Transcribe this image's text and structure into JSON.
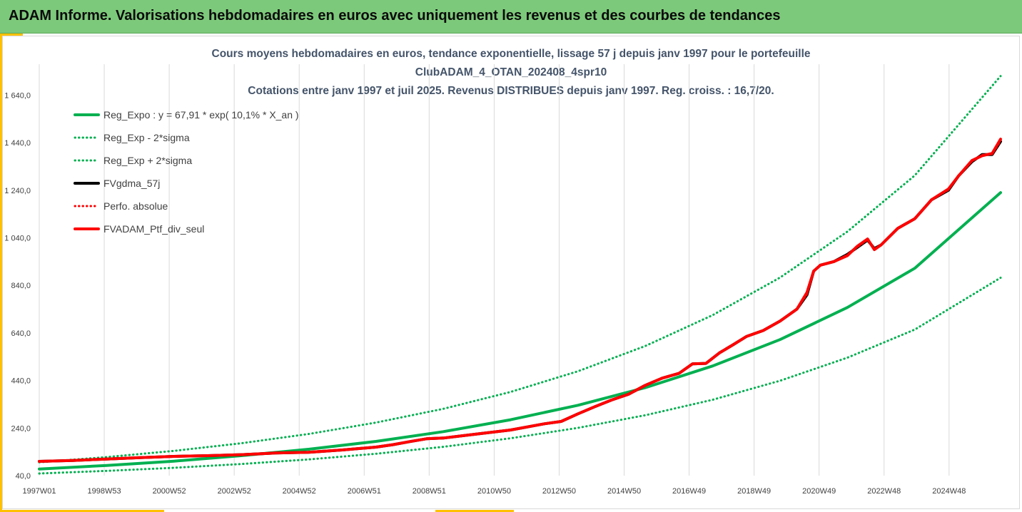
{
  "header": {
    "title": "ADAM Informe. Valorisations hebdomadaires en euros avec uniquement les revenus et des courbes de tendances"
  },
  "colors": {
    "banner_bg": "#7dc97b",
    "accent": "#ffc000",
    "trend": "#00b050",
    "band": "#00b050",
    "fv57": "#000000",
    "perfo": "#ff0000",
    "fvadam": "#ff0000"
  },
  "chart_data": {
    "type": "line",
    "title_lines": [
      "Cours moyens hebdomadaires  en euros, tendance exponentielle, lissage 57 j depuis janv 1997 pour le portefeuille",
      "ClubADAM_4_OTAN_202408_4spr10",
      "Cotations  entre janv 1997 et juil 2025. Revenus DISTRIBUES depuis janv 1997. Reg. croiss. : 16,7/20."
    ],
    "xlabel": "",
    "ylabel": "",
    "ylim": [
      40,
      1740
    ],
    "y_ticks": [
      "40,0",
      "240,0",
      "440,0",
      "640,0",
      "840,0",
      "1 040,0",
      "1 240,0",
      "1 440,0",
      "1 640,0"
    ],
    "x_range": [
      1997.0,
      2025.55
    ],
    "x_ticks": [
      "1997W01",
      "1998W53",
      "2000W52",
      "2002W52",
      "2004W52",
      "2006W51",
      "2008W51",
      "2010W50",
      "2012W50",
      "2014W50",
      "2016W49",
      "2018W49",
      "2020W49",
      "2022W48",
      "2024W48"
    ],
    "grid": "vertical",
    "legend_position": "top-left",
    "series": [
      {
        "name": "Reg_Expo : y = 67,91 * exp( 10,1% *  X_an )",
        "color": "#00b050",
        "style": "solid",
        "width": 4,
        "x": [
          1997.0,
          1999.0,
          2001.0,
          2003.0,
          2005.0,
          2007.0,
          2009.0,
          2011.0,
          2013.0,
          2015.0,
          2017.0,
          2019.0,
          2021.0,
          2023.0,
          2025.55
        ],
        "values": [
          68,
          83,
          101,
          124,
          151,
          184,
          225,
          275,
          336,
          410,
          501,
          612,
          747,
          912,
          1230
        ]
      },
      {
        "name": "Reg_Exp - 2*sigma",
        "color": "#00b050",
        "style": "dotted",
        "width": 3,
        "x": [
          1997.0,
          1999.0,
          2001.0,
          2003.0,
          2005.0,
          2007.0,
          2009.0,
          2011.0,
          2013.0,
          2015.0,
          2017.0,
          2019.0,
          2021.0,
          2023.0,
          2025.55
        ],
        "values": [
          49,
          60,
          73,
          89,
          108,
          132,
          161,
          197,
          241,
          294,
          359,
          439,
          536,
          654,
          872
        ]
      },
      {
        "name": "Reg_Exp + 2*sigma",
        "color": "#00b050",
        "style": "dotted",
        "width": 3,
        "x": [
          1997.0,
          1999.0,
          2001.0,
          2003.0,
          2005.0,
          2007.0,
          2009.0,
          2011.0,
          2013.0,
          2015.0,
          2017.0,
          2019.0,
          2021.0,
          2023.0,
          2025.55
        ],
        "values": [
          96,
          118,
          144,
          176,
          215,
          263,
          321,
          392,
          479,
          585,
          715,
          873,
          1066,
          1302,
          1720
        ]
      },
      {
        "name": "FVgdma_57j",
        "color": "#000000",
        "style": "solid",
        "width": 4,
        "x": [
          1997.0,
          1998.0,
          1999.0,
          2000.0,
          2001.0,
          2002.0,
          2003.0,
          2004.0,
          2005.0,
          2006.0,
          2007.0,
          2007.5,
          2008.0,
          2008.5,
          2009.0,
          2010.0,
          2011.0,
          2012.0,
          2012.5,
          2013.0,
          2013.5,
          2014.0,
          2014.5,
          2015.0,
          2015.5,
          2016.0,
          2016.4,
          2016.8,
          2017.2,
          2017.6,
          2018.0,
          2018.5,
          2019.0,
          2019.5,
          2019.8,
          2020.0,
          2020.2,
          2020.6,
          2021.0,
          2021.3,
          2021.6,
          2021.8,
          2022.0,
          2022.5,
          2023.0,
          2023.5,
          2024.0,
          2024.3,
          2024.7,
          2025.0,
          2025.3,
          2025.55
        ],
        "values": [
          100,
          104,
          110,
          116,
          121,
          124,
          128,
          135,
          138,
          148,
          160,
          170,
          183,
          195,
          198,
          215,
          232,
          258,
          268,
          300,
          330,
          358,
          382,
          420,
          450,
          470,
          510,
          512,
          556,
          590,
          625,
          650,
          690,
          740,
          800,
          900,
          925,
          940,
          970,
          1000,
          1030,
          995,
          1010,
          1080,
          1120,
          1200,
          1240,
          1300,
          1360,
          1390,
          1390,
          1445
        ]
      },
      {
        "name": "Perfo. absolue",
        "color": "#ff0000",
        "style": "dotted",
        "width": 3,
        "x": [
          1997.0,
          1998.0,
          1999.0,
          2000.0,
          2001.0,
          2002.0,
          2003.0,
          2004.0,
          2005.0,
          2006.0,
          2007.0,
          2007.5,
          2008.0,
          2008.5,
          2009.0,
          2010.0,
          2011.0,
          2012.0,
          2012.5,
          2013.0,
          2013.5,
          2014.0,
          2014.5,
          2015.0,
          2015.5,
          2016.0,
          2016.4,
          2016.8,
          2017.2,
          2017.6,
          2018.0,
          2018.5,
          2019.0,
          2019.5,
          2019.8,
          2020.0,
          2020.2,
          2020.6,
          2021.0,
          2021.3,
          2021.6,
          2021.8,
          2022.0,
          2022.5,
          2023.0,
          2023.5,
          2024.0,
          2024.3,
          2024.7,
          2025.0,
          2025.3,
          2025.55
        ],
        "values": [
          100,
          104,
          110,
          116,
          121,
          124,
          128,
          135,
          138,
          148,
          160,
          170,
          183,
          195,
          198,
          215,
          232,
          258,
          268,
          300,
          330,
          358,
          382,
          420,
          450,
          470,
          510,
          512,
          556,
          590,
          625,
          650,
          690,
          740,
          800,
          900,
          925,
          940,
          970,
          1000,
          1030,
          995,
          1010,
          1080,
          1120,
          1200,
          1240,
          1300,
          1360,
          1390,
          1390,
          1445
        ]
      },
      {
        "name": "FVADAM_Ptf_div_seul",
        "color": "#ff0000",
        "style": "solid",
        "width": 4,
        "x": [
          1997.0,
          1998.0,
          1999.0,
          2000.0,
          2001.0,
          2002.0,
          2003.0,
          2004.0,
          2005.0,
          2006.0,
          2007.0,
          2007.5,
          2008.0,
          2008.5,
          2009.0,
          2010.0,
          2011.0,
          2012.0,
          2012.5,
          2013.0,
          2013.5,
          2014.0,
          2014.5,
          2015.0,
          2015.5,
          2016.0,
          2016.4,
          2016.8,
          2017.2,
          2017.6,
          2018.0,
          2018.5,
          2019.0,
          2019.5,
          2019.8,
          2020.0,
          2020.2,
          2020.6,
          2021.0,
          2021.3,
          2021.6,
          2021.8,
          2022.0,
          2022.5,
          2023.0,
          2023.5,
          2024.0,
          2024.3,
          2024.7,
          2025.0,
          2025.3,
          2025.55
        ],
        "values": [
          100,
          104,
          110,
          116,
          121,
          124,
          128,
          135,
          138,
          148,
          160,
          170,
          183,
          195,
          198,
          215,
          232,
          258,
          268,
          300,
          330,
          358,
          382,
          420,
          450,
          470,
          510,
          512,
          556,
          590,
          625,
          650,
          690,
          740,
          810,
          900,
          925,
          940,
          965,
          1005,
          1035,
          990,
          1010,
          1080,
          1120,
          1200,
          1245,
          1300,
          1365,
          1385,
          1395,
          1455
        ]
      }
    ]
  }
}
